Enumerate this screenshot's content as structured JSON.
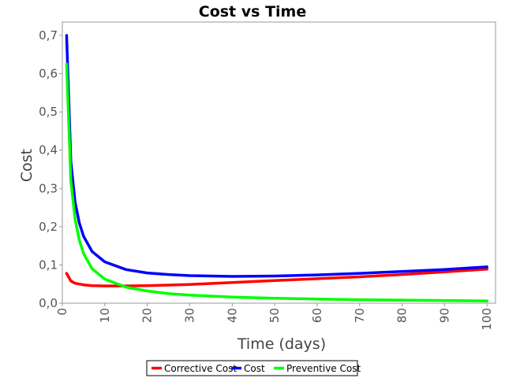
{
  "chart_data": {
    "type": "line",
    "title": "Cost vs Time",
    "xlabel": "Time (days)",
    "ylabel": "Cost",
    "xlim": [
      0,
      102
    ],
    "ylim": [
      0,
      0.735
    ],
    "xticks": [
      0,
      10,
      20,
      30,
      40,
      50,
      60,
      70,
      80,
      90,
      100
    ],
    "xtick_labels": [
      "0",
      "10",
      "20",
      "30",
      "40",
      "50",
      "60",
      "70",
      "80",
      "90",
      "100"
    ],
    "yticks": [
      0,
      0.1,
      0.2,
      0.3,
      0.4,
      0.5,
      0.6,
      0.7
    ],
    "ytick_labels": [
      "0,0",
      "0,1",
      "0,2",
      "0,3",
      "0,4",
      "0,5",
      "0,6",
      "0,7"
    ],
    "grid": false,
    "legend_position": "bottom-center",
    "series": [
      {
        "name": "Corrective Cost",
        "color": "#ff0000",
        "x": [
          1,
          2,
          3,
          5,
          7,
          10,
          15,
          20,
          30,
          40,
          50,
          60,
          70,
          80,
          90,
          100
        ],
        "y": [
          0.078,
          0.058,
          0.052,
          0.048,
          0.046,
          0.045,
          0.045,
          0.046,
          0.049,
          0.054,
          0.059,
          0.064,
          0.069,
          0.075,
          0.082,
          0.089
        ]
      },
      {
        "name": "Cost",
        "color": "#0000ff",
        "x": [
          1,
          2,
          3,
          4,
          5,
          7,
          10,
          15,
          20,
          25,
          30,
          40,
          50,
          60,
          70,
          80,
          90,
          100
        ],
        "y": [
          0.7,
          0.37,
          0.265,
          0.21,
          0.175,
          0.135,
          0.108,
          0.088,
          0.079,
          0.075,
          0.072,
          0.07,
          0.071,
          0.074,
          0.078,
          0.083,
          0.088,
          0.095
        ]
      },
      {
        "name": "Preventive Cost",
        "color": "#00ff00",
        "x": [
          1,
          2,
          3,
          4,
          5,
          7,
          10,
          15,
          20,
          25,
          30,
          40,
          50,
          60,
          70,
          80,
          90,
          100
        ],
        "y": [
          0.625,
          0.32,
          0.22,
          0.165,
          0.13,
          0.09,
          0.063,
          0.042,
          0.032,
          0.025,
          0.021,
          0.016,
          0.013,
          0.011,
          0.009,
          0.008,
          0.007,
          0.006
        ]
      }
    ]
  }
}
